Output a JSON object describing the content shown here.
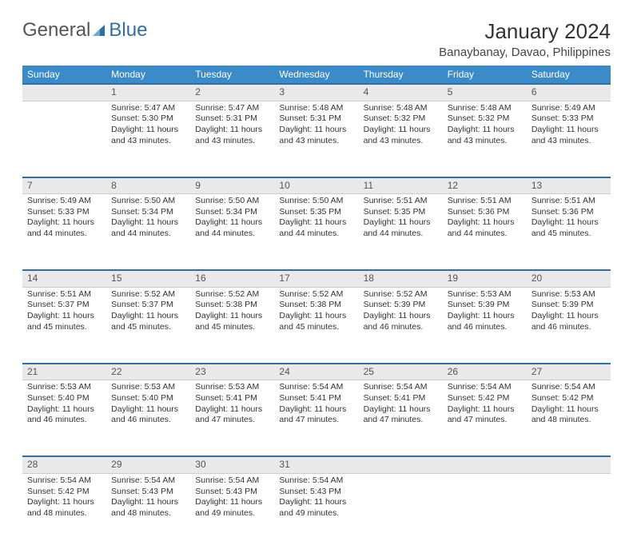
{
  "logo": {
    "text1": "General",
    "text2": "Blue"
  },
  "header": {
    "title": "January 2024",
    "location": "Banaybanay, Davao, Philippines"
  },
  "colors": {
    "header_bg": "#3b8bc9",
    "header_text": "#ffffff",
    "daynum_bg": "#e9e9e9",
    "rule": "#2f6fa3"
  },
  "weekdays": [
    "Sunday",
    "Monday",
    "Tuesday",
    "Wednesday",
    "Thursday",
    "Friday",
    "Saturday"
  ],
  "weeks": [
    {
      "nums": [
        "",
        "1",
        "2",
        "3",
        "4",
        "5",
        "6"
      ],
      "cells": [
        null,
        {
          "sr": "Sunrise: 5:47 AM",
          "ss": "Sunset: 5:30 PM",
          "d1": "Daylight: 11 hours",
          "d2": "and 43 minutes."
        },
        {
          "sr": "Sunrise: 5:47 AM",
          "ss": "Sunset: 5:31 PM",
          "d1": "Daylight: 11 hours",
          "d2": "and 43 minutes."
        },
        {
          "sr": "Sunrise: 5:48 AM",
          "ss": "Sunset: 5:31 PM",
          "d1": "Daylight: 11 hours",
          "d2": "and 43 minutes."
        },
        {
          "sr": "Sunrise: 5:48 AM",
          "ss": "Sunset: 5:32 PM",
          "d1": "Daylight: 11 hours",
          "d2": "and 43 minutes."
        },
        {
          "sr": "Sunrise: 5:48 AM",
          "ss": "Sunset: 5:32 PM",
          "d1": "Daylight: 11 hours",
          "d2": "and 43 minutes."
        },
        {
          "sr": "Sunrise: 5:49 AM",
          "ss": "Sunset: 5:33 PM",
          "d1": "Daylight: 11 hours",
          "d2": "and 43 minutes."
        }
      ]
    },
    {
      "nums": [
        "7",
        "8",
        "9",
        "10",
        "11",
        "12",
        "13"
      ],
      "cells": [
        {
          "sr": "Sunrise: 5:49 AM",
          "ss": "Sunset: 5:33 PM",
          "d1": "Daylight: 11 hours",
          "d2": "and 44 minutes."
        },
        {
          "sr": "Sunrise: 5:50 AM",
          "ss": "Sunset: 5:34 PM",
          "d1": "Daylight: 11 hours",
          "d2": "and 44 minutes."
        },
        {
          "sr": "Sunrise: 5:50 AM",
          "ss": "Sunset: 5:34 PM",
          "d1": "Daylight: 11 hours",
          "d2": "and 44 minutes."
        },
        {
          "sr": "Sunrise: 5:50 AM",
          "ss": "Sunset: 5:35 PM",
          "d1": "Daylight: 11 hours",
          "d2": "and 44 minutes."
        },
        {
          "sr": "Sunrise: 5:51 AM",
          "ss": "Sunset: 5:35 PM",
          "d1": "Daylight: 11 hours",
          "d2": "and 44 minutes."
        },
        {
          "sr": "Sunrise: 5:51 AM",
          "ss": "Sunset: 5:36 PM",
          "d1": "Daylight: 11 hours",
          "d2": "and 44 minutes."
        },
        {
          "sr": "Sunrise: 5:51 AM",
          "ss": "Sunset: 5:36 PM",
          "d1": "Daylight: 11 hours",
          "d2": "and 45 minutes."
        }
      ]
    },
    {
      "nums": [
        "14",
        "15",
        "16",
        "17",
        "18",
        "19",
        "20"
      ],
      "cells": [
        {
          "sr": "Sunrise: 5:51 AM",
          "ss": "Sunset: 5:37 PM",
          "d1": "Daylight: 11 hours",
          "d2": "and 45 minutes."
        },
        {
          "sr": "Sunrise: 5:52 AM",
          "ss": "Sunset: 5:37 PM",
          "d1": "Daylight: 11 hours",
          "d2": "and 45 minutes."
        },
        {
          "sr": "Sunrise: 5:52 AM",
          "ss": "Sunset: 5:38 PM",
          "d1": "Daylight: 11 hours",
          "d2": "and 45 minutes."
        },
        {
          "sr": "Sunrise: 5:52 AM",
          "ss": "Sunset: 5:38 PM",
          "d1": "Daylight: 11 hours",
          "d2": "and 45 minutes."
        },
        {
          "sr": "Sunrise: 5:52 AM",
          "ss": "Sunset: 5:39 PM",
          "d1": "Daylight: 11 hours",
          "d2": "and 46 minutes."
        },
        {
          "sr": "Sunrise: 5:53 AM",
          "ss": "Sunset: 5:39 PM",
          "d1": "Daylight: 11 hours",
          "d2": "and 46 minutes."
        },
        {
          "sr": "Sunrise: 5:53 AM",
          "ss": "Sunset: 5:39 PM",
          "d1": "Daylight: 11 hours",
          "d2": "and 46 minutes."
        }
      ]
    },
    {
      "nums": [
        "21",
        "22",
        "23",
        "24",
        "25",
        "26",
        "27"
      ],
      "cells": [
        {
          "sr": "Sunrise: 5:53 AM",
          "ss": "Sunset: 5:40 PM",
          "d1": "Daylight: 11 hours",
          "d2": "and 46 minutes."
        },
        {
          "sr": "Sunrise: 5:53 AM",
          "ss": "Sunset: 5:40 PM",
          "d1": "Daylight: 11 hours",
          "d2": "and 46 minutes."
        },
        {
          "sr": "Sunrise: 5:53 AM",
          "ss": "Sunset: 5:41 PM",
          "d1": "Daylight: 11 hours",
          "d2": "and 47 minutes."
        },
        {
          "sr": "Sunrise: 5:54 AM",
          "ss": "Sunset: 5:41 PM",
          "d1": "Daylight: 11 hours",
          "d2": "and 47 minutes."
        },
        {
          "sr": "Sunrise: 5:54 AM",
          "ss": "Sunset: 5:41 PM",
          "d1": "Daylight: 11 hours",
          "d2": "and 47 minutes."
        },
        {
          "sr": "Sunrise: 5:54 AM",
          "ss": "Sunset: 5:42 PM",
          "d1": "Daylight: 11 hours",
          "d2": "and 47 minutes."
        },
        {
          "sr": "Sunrise: 5:54 AM",
          "ss": "Sunset: 5:42 PM",
          "d1": "Daylight: 11 hours",
          "d2": "and 48 minutes."
        }
      ]
    },
    {
      "nums": [
        "28",
        "29",
        "30",
        "31",
        "",
        "",
        ""
      ],
      "cells": [
        {
          "sr": "Sunrise: 5:54 AM",
          "ss": "Sunset: 5:42 PM",
          "d1": "Daylight: 11 hours",
          "d2": "and 48 minutes."
        },
        {
          "sr": "Sunrise: 5:54 AM",
          "ss": "Sunset: 5:43 PM",
          "d1": "Daylight: 11 hours",
          "d2": "and 48 minutes."
        },
        {
          "sr": "Sunrise: 5:54 AM",
          "ss": "Sunset: 5:43 PM",
          "d1": "Daylight: 11 hours",
          "d2": "and 49 minutes."
        },
        {
          "sr": "Sunrise: 5:54 AM",
          "ss": "Sunset: 5:43 PM",
          "d1": "Daylight: 11 hours",
          "d2": "and 49 minutes."
        },
        null,
        null,
        null
      ]
    }
  ]
}
